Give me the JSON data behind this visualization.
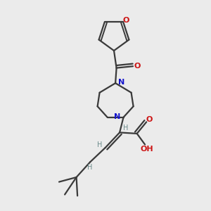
{
  "background_color": "#ebebeb",
  "bond_color": "#3a3a3a",
  "N_color": "#1414cc",
  "O_color": "#cc1414",
  "H_color": "#6a8a8a",
  "figsize": [
    3.0,
    3.0
  ],
  "dpi": 100,
  "xlim": [
    0,
    10
  ],
  "ylim": [
    0,
    10
  ]
}
